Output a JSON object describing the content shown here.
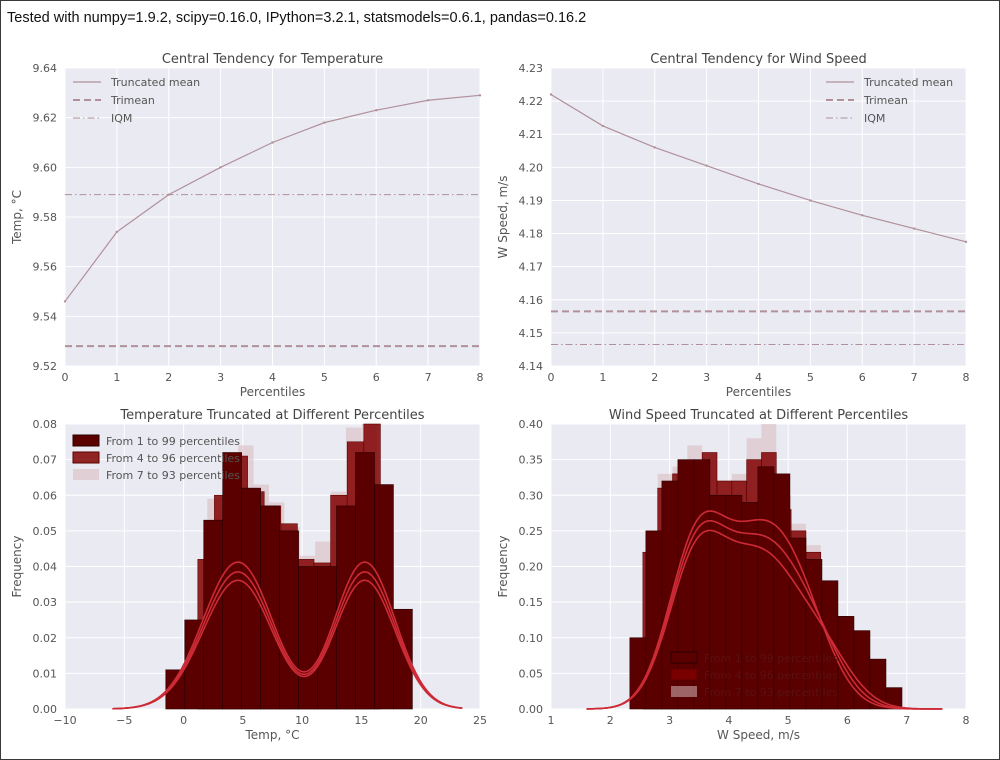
{
  "header": {
    "text": "Tested with numpy=1.9.2, scipy=0.16.0, IPython=3.2.1, statsmodels=0.6.1, pandas=0.16.2"
  },
  "colors": {
    "plot_background": "#eaeaf2",
    "grid": "#ffffff",
    "line": "#b0909a",
    "dark_bar": "#5a0000",
    "mid_bar": "#800000",
    "kde": "#cc2b36",
    "light_bar": "#d7b8bc"
  },
  "chart_data": [
    {
      "type": "line",
      "title": "Central Tendency for Temperature",
      "xlabel": "Percentiles",
      "ylabel": "Temp, °C",
      "xlim": [
        0,
        8
      ],
      "ylim": [
        9.52,
        9.64
      ],
      "xticks": [
        "0",
        "1",
        "2",
        "3",
        "4",
        "5",
        "6",
        "7",
        "8"
      ],
      "yticks": [
        "9.52",
        "9.54",
        "9.56",
        "9.58",
        "9.60",
        "9.62",
        "9.64"
      ],
      "grid": true,
      "legend_position": "top-left",
      "series": [
        {
          "name": "Truncated mean",
          "style": "solid",
          "x": [
            0,
            1,
            2,
            3,
            4,
            5,
            6,
            7,
            8
          ],
          "values": [
            9.546,
            9.574,
            9.589,
            9.6,
            9.61,
            9.618,
            9.623,
            9.627,
            9.629
          ]
        },
        {
          "name": "Trimean",
          "style": "dashed",
          "x": [
            0,
            8
          ],
          "values": [
            9.528,
            9.528
          ]
        },
        {
          "name": "IQM",
          "style": "dashdot",
          "x": [
            0,
            8
          ],
          "values": [
            9.589,
            9.589
          ]
        }
      ]
    },
    {
      "type": "line",
      "title": "Central Tendency for Wind Speed",
      "xlabel": "Percentiles",
      "ylabel": "W Speed, m/s",
      "xlim": [
        0,
        8
      ],
      "ylim": [
        4.14,
        4.23
      ],
      "xticks": [
        "0",
        "1",
        "2",
        "3",
        "4",
        "5",
        "6",
        "7",
        "8"
      ],
      "yticks": [
        "4.14",
        "4.15",
        "4.16",
        "4.17",
        "4.18",
        "4.19",
        "4.20",
        "4.21",
        "4.22",
        "4.23"
      ],
      "grid": true,
      "legend_position": "top-right",
      "series": [
        {
          "name": "Truncated mean",
          "style": "solid",
          "x": [
            0,
            1,
            2,
            3,
            4,
            5,
            6,
            7,
            8
          ],
          "values": [
            4.222,
            4.2125,
            4.206,
            4.2005,
            4.195,
            4.19,
            4.1855,
            4.1815,
            4.1775
          ]
        },
        {
          "name": "Trimean",
          "style": "dashed",
          "x": [
            0,
            8
          ],
          "values": [
            4.1565,
            4.1565
          ]
        },
        {
          "name": "IQM",
          "style": "dashdot",
          "x": [
            0,
            8
          ],
          "values": [
            4.1465,
            4.1465
          ]
        }
      ]
    },
    {
      "type": "bar",
      "subtype": "histogram_with_kde",
      "title": "Temperature Truncated at Different Percentiles",
      "xlabel": "Temp, °C",
      "ylabel": "Frequency",
      "xlim": [
        -10,
        25
      ],
      "ylim": [
        0,
        0.08
      ],
      "xticks": [
        "−10",
        "−5",
        "0",
        "5",
        "10",
        "15",
        "20",
        "25"
      ],
      "yticks": [
        "0.00",
        "0.01",
        "0.02",
        "0.03",
        "0.04",
        "0.05",
        "0.06",
        "0.07",
        "0.08"
      ],
      "grid": true,
      "legend_position": "top-left",
      "series": [
        {
          "name": "From 1 to 99 percentiles",
          "bin_edges": [
            -1.5,
            0.1,
            1.7,
            3.3,
            4.9,
            6.5,
            8.1,
            9.7,
            11.3,
            12.9,
            14.5,
            16.1,
            17.7,
            19.3
          ],
          "values": [
            0.011,
            0.025,
            0.053,
            0.072,
            0.062,
            0.057,
            0.05,
            0.04,
            0.04,
            0.057,
            0.072,
            0.063,
            0.028
          ]
        },
        {
          "name": "From 4 to 96 percentiles",
          "bin_edges": [
            1.2,
            2.6,
            4.0,
            5.4,
            6.8,
            8.2,
            9.6,
            11.0,
            12.4,
            13.8,
            15.2,
            16.6
          ],
          "values": [
            0.042,
            0.06,
            0.071,
            0.061,
            0.057,
            0.052,
            0.042,
            0.041,
            0.06,
            0.075,
            0.08
          ]
        },
        {
          "name": "From 7 to 93 percentiles",
          "bin_edges": [
            2.0,
            3.3,
            4.6,
            5.9,
            7.2,
            8.5,
            9.8,
            11.1,
            12.4,
            13.7,
            15.0,
            16.3
          ],
          "values": [
            0.059,
            0.07,
            0.074,
            0.063,
            0.058,
            0.051,
            0.043,
            0.047,
            0.061,
            0.079,
            0.08
          ]
        }
      ]
    },
    {
      "type": "bar",
      "subtype": "histogram_with_kde",
      "title": "Wind Speed Truncated at Different Percentiles",
      "xlabel": "W Speed, m/s",
      "ylabel": "Frequency",
      "xlim": [
        1,
        8
      ],
      "ylim": [
        0,
        0.4
      ],
      "xticks": [
        "1",
        "2",
        "3",
        "4",
        "5",
        "6",
        "7",
        "8"
      ],
      "yticks": [
        "0.00",
        "0.05",
        "0.10",
        "0.15",
        "0.20",
        "0.25",
        "0.30",
        "0.35",
        "0.40"
      ],
      "grid": true,
      "legend_position": "lower-right",
      "series": [
        {
          "name": "From 1 to 99 percentiles",
          "bin_edges": [
            2.33,
            2.6,
            2.87,
            3.14,
            3.41,
            3.68,
            3.95,
            4.22,
            4.49,
            4.76,
            5.03,
            5.3,
            5.57,
            5.84,
            6.11,
            6.38,
            6.65,
            6.92
          ],
          "values": [
            0.1,
            0.25,
            0.32,
            0.35,
            0.35,
            0.3,
            0.3,
            0.29,
            0.34,
            0.33,
            0.24,
            0.21,
            0.18,
            0.13,
            0.11,
            0.07,
            0.03
          ]
        },
        {
          "name": "From 4 to 96 percentiles",
          "bin_edges": [
            2.55,
            2.8,
            3.05,
            3.3,
            3.55,
            3.8,
            4.05,
            4.3,
            4.55,
            4.8,
            5.05,
            5.3,
            5.55,
            5.8,
            6.05
          ],
          "values": [
            0.22,
            0.31,
            0.33,
            0.34,
            0.36,
            0.32,
            0.32,
            0.35,
            0.36,
            0.28,
            0.25,
            0.22,
            0.16,
            0.13
          ]
        },
        {
          "name": "From 7 to 93 percentiles",
          "bin_edges": [
            2.8,
            3.05,
            3.3,
            3.55,
            3.8,
            4.05,
            4.3,
            4.55,
            4.8,
            5.05,
            5.3,
            5.55,
            5.8
          ],
          "values": [
            0.33,
            0.34,
            0.37,
            0.35,
            0.32,
            0.33,
            0.38,
            0.4,
            0.3,
            0.26,
            0.23,
            0.18
          ]
        }
      ]
    }
  ]
}
